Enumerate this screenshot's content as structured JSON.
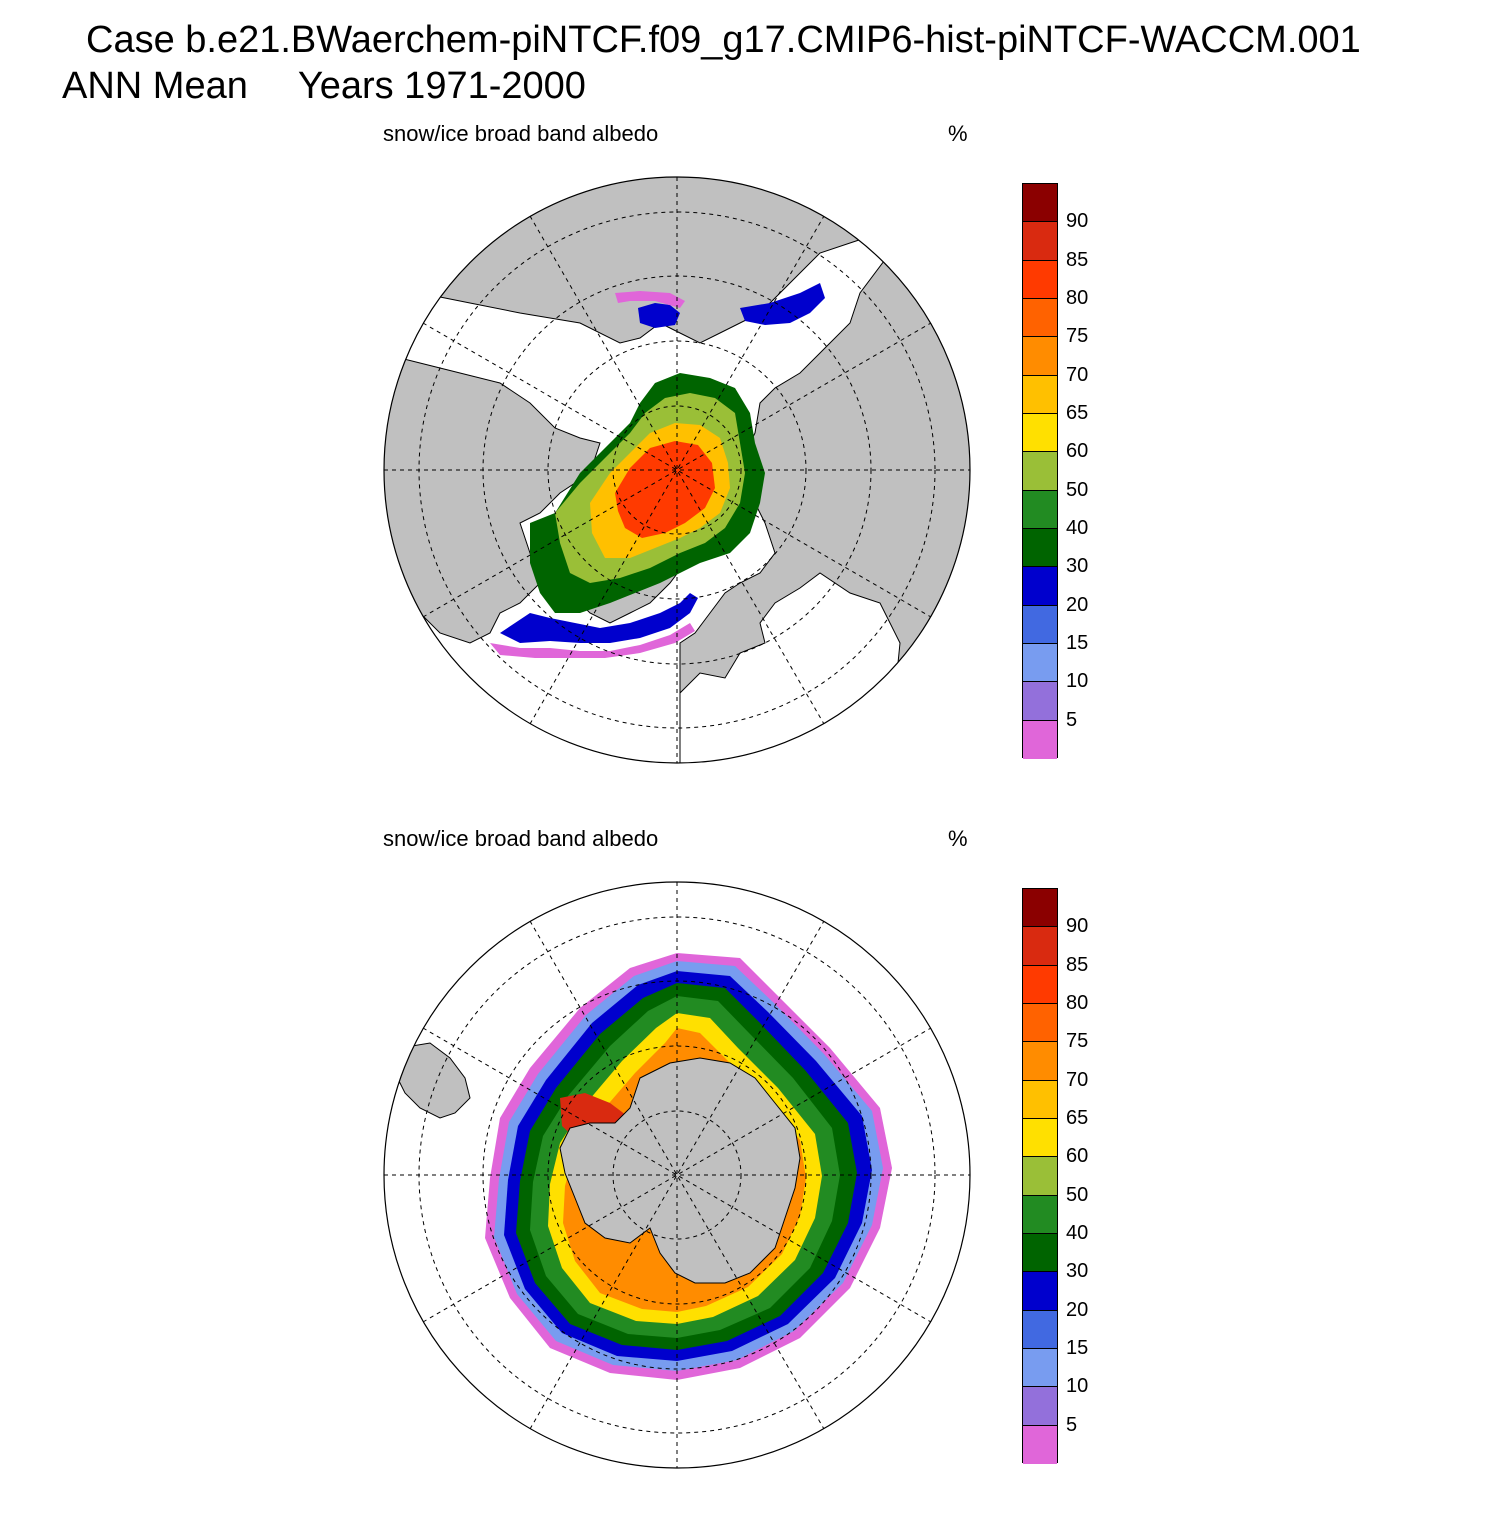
{
  "header": {
    "case_line": "Case b.e21.BWaerchem-piNTCF.f09_g17.CMIP6-hist-piNTCF-WACCM.001",
    "season": "ANN Mean",
    "years": "Years 1971-2000"
  },
  "panels": [
    {
      "id": "north",
      "title": "snow/ice broad band albedo",
      "units": "%"
    },
    {
      "id": "south",
      "title": "snow/ice broad band albedo",
      "units": "%"
    }
  ],
  "colorbar": {
    "colors": [
      "#8b0000",
      "#d92a10",
      "#ff3a00",
      "#ff6200",
      "#ff8c00",
      "#ffc000",
      "#ffe000",
      "#9abf37",
      "#228b22",
      "#006400",
      "#0000cd",
      "#4169e1",
      "#789cf0",
      "#9370db",
      "#e066d9"
    ],
    "labels": [
      "90",
      "85",
      "80",
      "75",
      "70",
      "65",
      "60",
      "50",
      "40",
      "30",
      "20",
      "15",
      "10",
      "5"
    ]
  },
  "colors": {
    "land": "#c0c0c0",
    "ocean": "#ffffff"
  }
}
